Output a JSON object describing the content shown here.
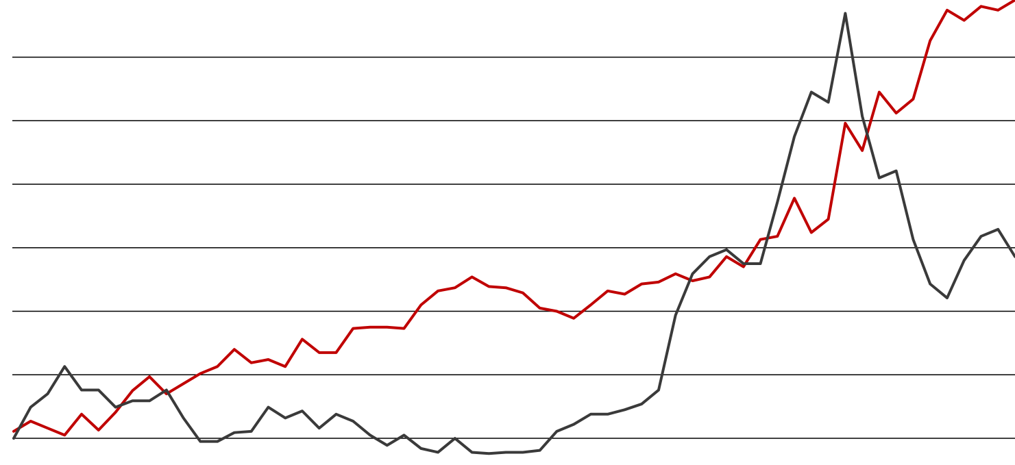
{
  "chart_data": {
    "type": "line",
    "ylim": [
      -0.42,
      6.9
    ],
    "yticks": [
      0,
      1,
      2,
      3,
      4,
      5,
      6
    ],
    "grid": true,
    "series": [
      {
        "color": "#c00000",
        "values": [
          0.11,
          0.27,
          0.16,
          0.05,
          0.38,
          0.13,
          0.41,
          0.75,
          0.97,
          0.7,
          0.86,
          1.02,
          1.13,
          1.4,
          1.19,
          1.24,
          1.13,
          1.56,
          1.35,
          1.35,
          1.73,
          1.75,
          1.75,
          1.73,
          2.1,
          2.32,
          2.37,
          2.54,
          2.39,
          2.37,
          2.29,
          2.05,
          2.0,
          1.89,
          2.1,
          2.32,
          2.27,
          2.43,
          2.46,
          2.59,
          2.48,
          2.54,
          2.86,
          2.7,
          3.13,
          3.18,
          3.78,
          3.24,
          3.45,
          4.96,
          4.53,
          5.45,
          5.12,
          5.34,
          6.26,
          6.74,
          6.58,
          6.8,
          6.74,
          6.9
        ]
      },
      {
        "color": "#3a3a3a",
        "values": [
          0,
          0.49,
          0.7,
          1.13,
          0.76,
          0.76,
          0.49,
          0.59,
          0.59,
          0.76,
          0.32,
          -0.05,
          -0.05,
          0.09,
          0.11,
          0.49,
          0.32,
          0.43,
          0.16,
          0.38,
          0.27,
          0.05,
          -0.11,
          0.05,
          -0.16,
          -0.22,
          0,
          -0.22,
          -0.24,
          -0.22,
          -0.22,
          -0.19,
          0.11,
          0.22,
          0.38,
          0.38,
          0.45,
          0.54,
          0.76,
          1.94,
          2.59,
          2.86,
          2.97,
          2.75,
          2.75,
          3.72,
          4.75,
          5.45,
          5.29,
          6.69,
          5.07,
          4.1,
          4.21,
          3.13,
          2.43,
          2.21,
          2.8,
          3.18,
          3.29,
          2.86
        ]
      }
    ]
  }
}
